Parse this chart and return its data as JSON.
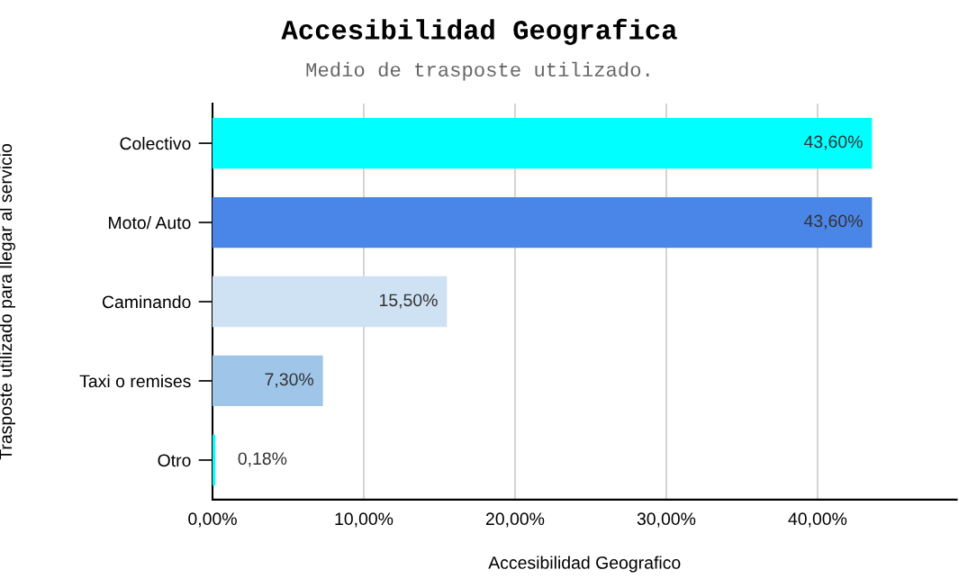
{
  "chart_data": {
    "type": "bar",
    "orientation": "horizontal",
    "title": "Accesibilidad Geografica",
    "subtitle": "Medio de trasposte utilizado.",
    "xlabel": "Accesibilidad Geografico",
    "ylabel": "Trasposte utilizado para llegar al servicio",
    "categories": [
      "Colectivo",
      "Moto/ Auto",
      "Caminando",
      "Taxi o remises",
      "Otro"
    ],
    "values": [
      43.6,
      43.6,
      15.5,
      7.3,
      0.18
    ],
    "colors": [
      "#00ffff",
      "#4a86e8",
      "#cfe2f3",
      "#9fc5e8",
      "#00ffff"
    ],
    "value_labels": [
      "43,60%",
      "43,60%",
      "15,50%",
      "7,30%",
      "0,18%"
    ],
    "xlim": [
      0,
      49.2
    ],
    "xticks": [
      {
        "value": 0,
        "label": "0,00%"
      },
      {
        "value": 10,
        "label": "10,00%"
      },
      {
        "value": 20,
        "label": "20,00%"
      },
      {
        "value": 30,
        "label": "30,00%"
      },
      {
        "value": 40,
        "label": "40,00%"
      }
    ],
    "grid": "x",
    "legend": false
  }
}
